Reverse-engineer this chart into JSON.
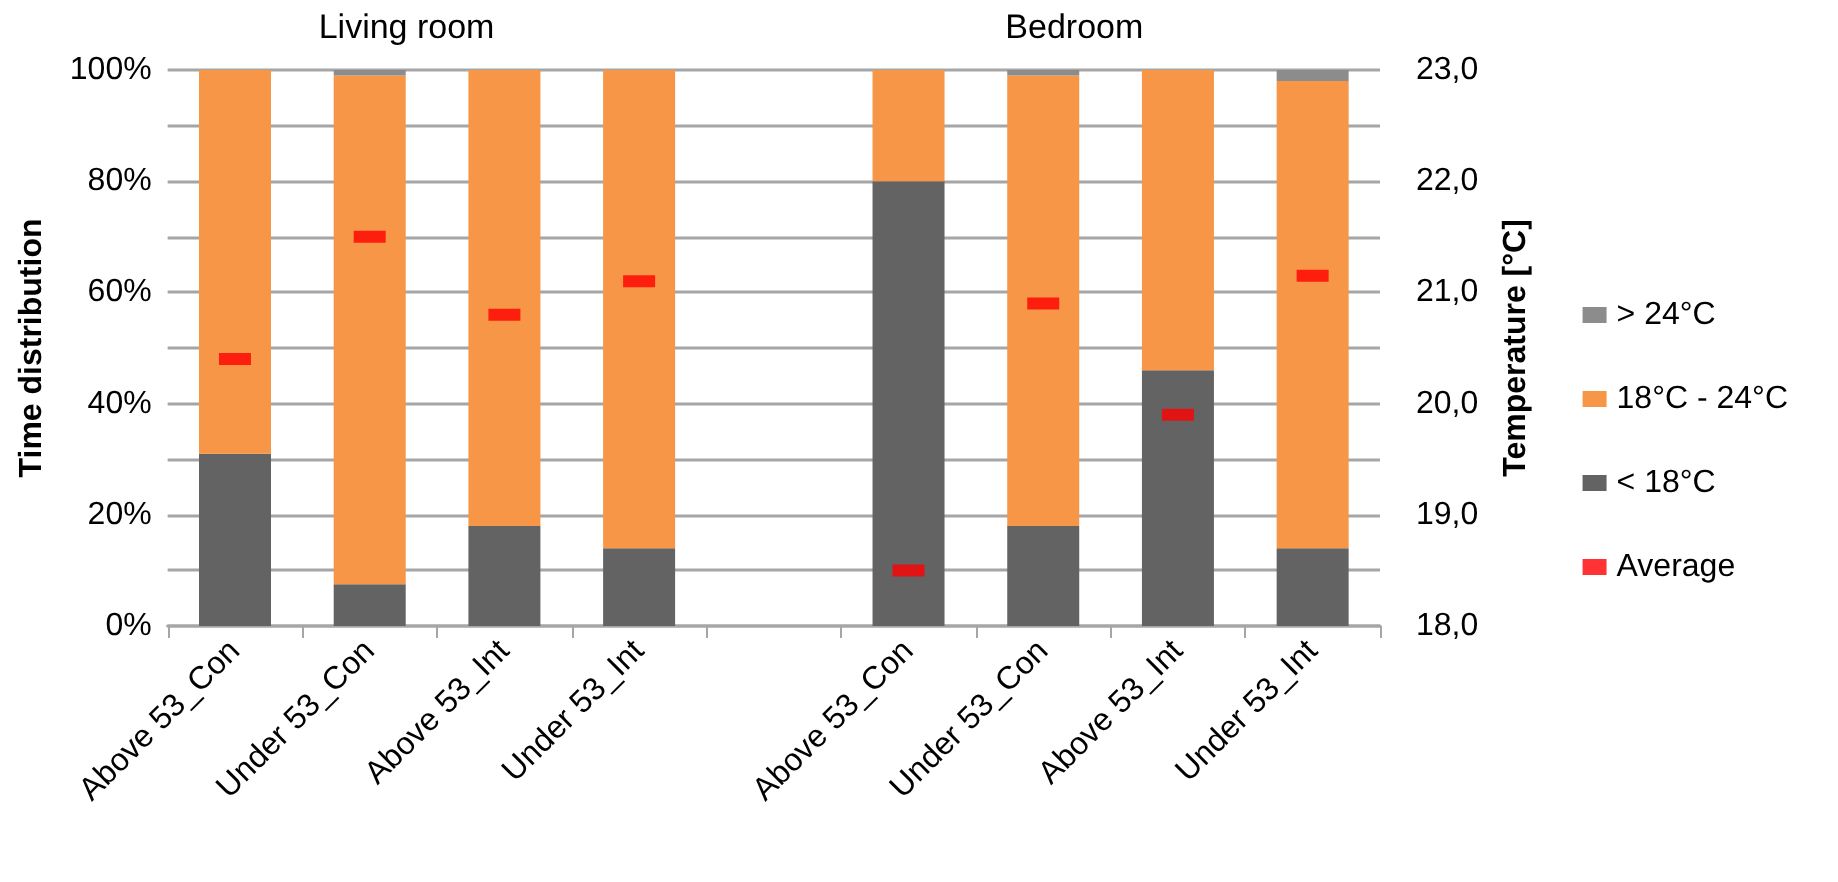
{
  "chart_data": {
    "type": "bar",
    "stacked": true,
    "categories": [
      "Above 53_Con",
      "Under 53_Con",
      "Above 53_Int",
      "Under 53_Int",
      null,
      "Above 53_Con",
      "Under 53_Con",
      "Above 53_Int",
      "Under 53_Int"
    ],
    "series": [
      {
        "name": "< 18°C",
        "color": "#636363",
        "values": [
          31,
          7.5,
          18,
          14,
          null,
          80,
          18,
          46,
          14
        ]
      },
      {
        "name": "18°C - 24°C",
        "color": "#f79646",
        "values": [
          69,
          91.5,
          82,
          86,
          null,
          20,
          81,
          54,
          84
        ]
      },
      {
        "name": "> 24°C",
        "color": "#8c8c8c",
        "values": [
          0,
          1,
          0,
          0,
          null,
          0,
          1,
          0,
          2
        ]
      },
      {
        "name": "Average",
        "type": "scatter",
        "axis": "y2",
        "color": "#ff0000",
        "values": [
          20.4,
          21.5,
          20.8,
          21.1,
          null,
          18.5,
          20.9,
          19.9,
          21.15
        ]
      }
    ],
    "ylabel": "Time distribution",
    "y2label": "Temperature [°C]",
    "ylim": [
      0,
      100
    ],
    "yticks": [
      {
        "value": 0,
        "label": "0%"
      },
      {
        "value": 10,
        "label": null
      },
      {
        "value": 20,
        "label": "20%"
      },
      {
        "value": 30,
        "label": null
      },
      {
        "value": 40,
        "label": "40%"
      },
      {
        "value": 50,
        "label": null
      },
      {
        "value": 60,
        "label": "60%"
      },
      {
        "value": 70,
        "label": null
      },
      {
        "value": 80,
        "label": "80%"
      },
      {
        "value": 90,
        "label": null
      },
      {
        "value": 100,
        "label": "100%"
      }
    ],
    "y2lim": [
      18,
      23
    ],
    "y2ticks": [
      {
        "value": 18,
        "label": "18,0"
      },
      {
        "value": 19,
        "label": "19,0"
      },
      {
        "value": 20,
        "label": "20,0"
      },
      {
        "value": 21,
        "label": "21,0"
      },
      {
        "value": 22,
        "label": "22,0"
      },
      {
        "value": 23,
        "label": "23,0"
      }
    ],
    "annotations": [
      "Living room",
      "Bedroom"
    ],
    "grid": "y",
    "legend": "right"
  }
}
